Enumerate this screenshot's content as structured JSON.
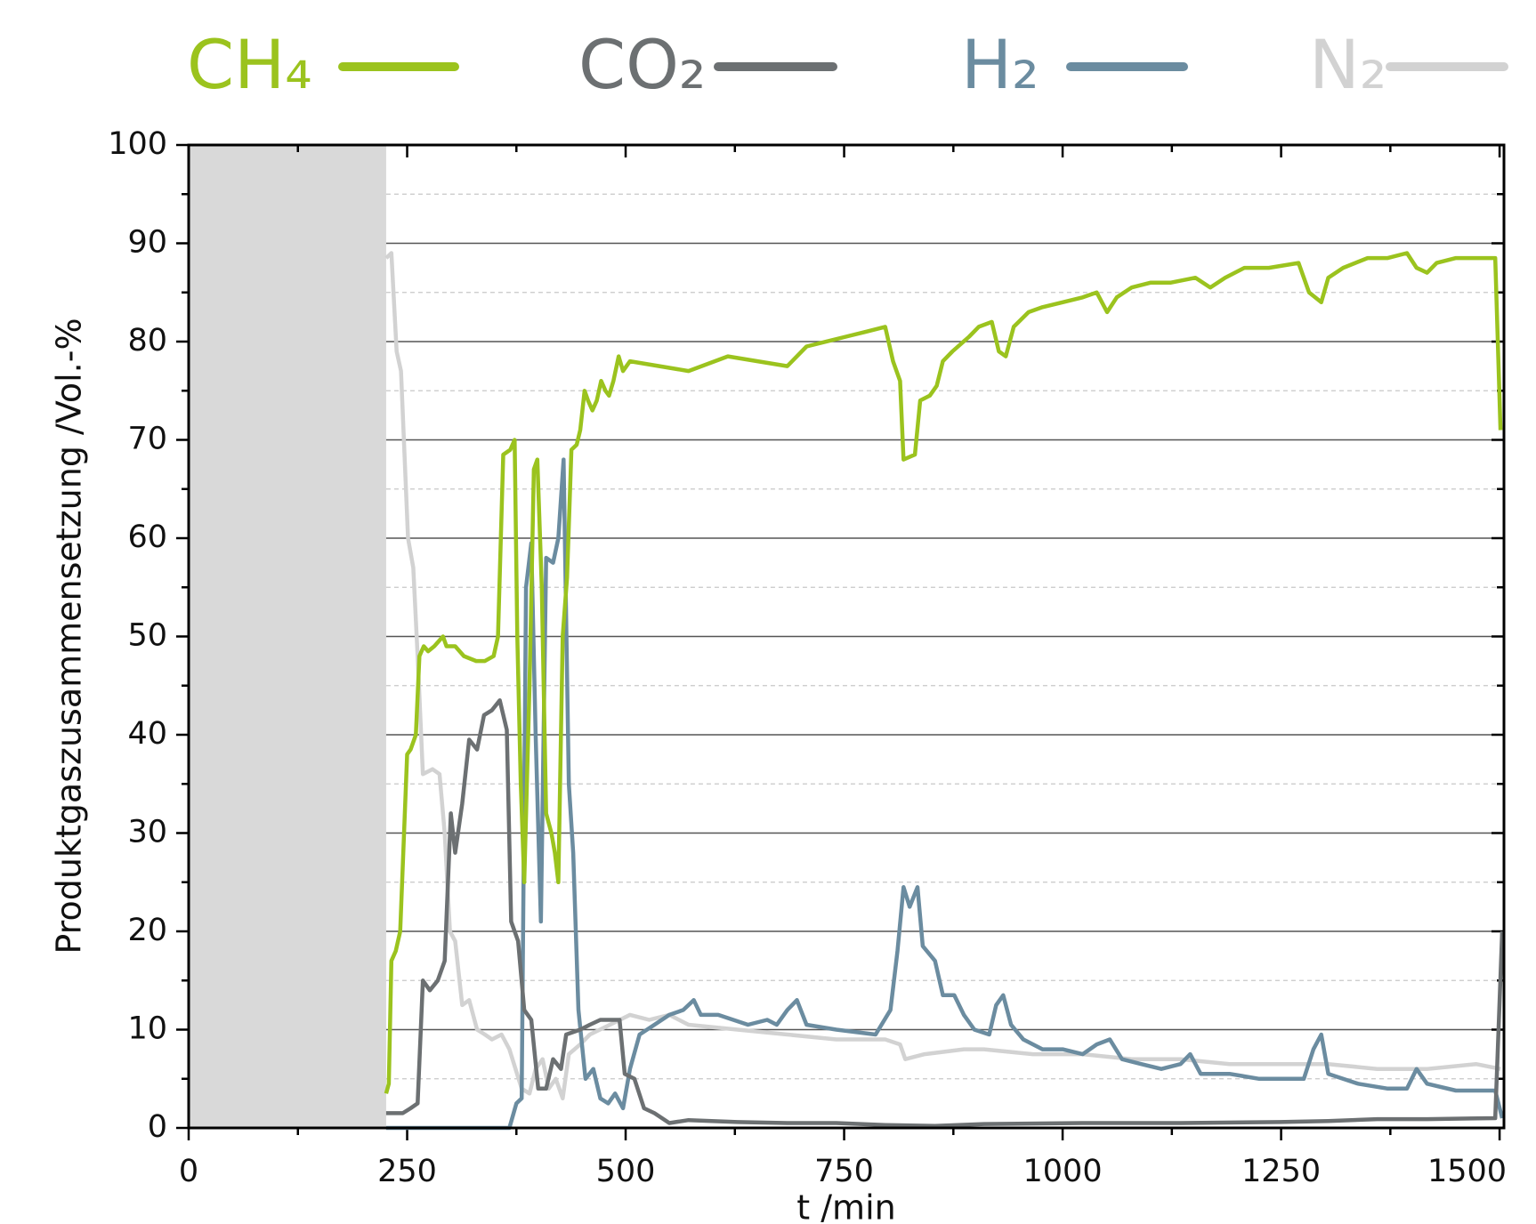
{
  "chart_data": {
    "type": "line",
    "ylabel": "Produktgaszusammensetzung /Vol.-%",
    "xlabel": "t /min",
    "xlim": [
      0,
      1505
    ],
    "ylim": [
      0,
      100
    ],
    "xticks": [
      0,
      250,
      500,
      750,
      1000,
      1250,
      1500
    ],
    "x_minor_ticks": [
      125,
      375,
      625,
      875,
      1125,
      1375
    ],
    "yticks": [
      0,
      10,
      20,
      30,
      40,
      50,
      60,
      70,
      80,
      90,
      100
    ],
    "y_minor_ticks": [
      5,
      15,
      25,
      35,
      45,
      55,
      65,
      75,
      85,
      95
    ],
    "grid": true,
    "shaded_xlim": [
      0,
      226
    ],
    "legend": "top",
    "series": [
      {
        "name": "CH₄",
        "color": "#9bc31e",
        "x": [
          226,
          229,
          232,
          237,
          242,
          250,
          254,
          260,
          264,
          269,
          274,
          281,
          291,
          295,
          305,
          315,
          329,
          339,
          349,
          354,
          360,
          368,
          373,
          376,
          380,
          384,
          390,
          395,
          399,
          404,
          409,
          415,
          419,
          423,
          428,
          433,
          438,
          444,
          448,
          453,
          457,
          462,
          467,
          472,
          477,
          481,
          486,
          492,
          497,
          505,
          572,
          617,
          685,
          707,
          752,
          775,
          797,
          806,
          814,
          818,
          831,
          837,
          848,
          856,
          863,
          874,
          893,
          904,
          919,
          927,
          935,
          944,
          961,
          977,
          1000,
          1023,
          1039,
          1051,
          1062,
          1079,
          1101,
          1124,
          1152,
          1169,
          1186,
          1208,
          1236,
          1270,
          1282,
          1296,
          1304,
          1321,
          1349,
          1372,
          1394,
          1405,
          1417,
          1428,
          1450,
          1473,
          1495,
          1501
        ],
        "values": [
          3.5,
          4.5,
          17,
          18,
          20,
          38,
          38.5,
          40,
          48,
          49,
          48.5,
          49,
          50,
          49,
          49,
          48,
          47.5,
          47.5,
          48,
          50,
          68.5,
          69,
          70,
          50,
          35,
          25,
          45,
          67,
          68,
          55,
          32,
          30,
          28,
          25,
          50,
          56,
          69,
          69.5,
          71,
          75,
          74,
          73,
          74,
          76,
          75,
          74.5,
          76,
          78.5,
          77,
          78,
          77,
          78.5,
          77.5,
          79.5,
          80.5,
          81,
          81.5,
          78,
          76,
          68,
          68.5,
          74,
          74.5,
          75.5,
          78,
          79,
          80.5,
          81.5,
          82,
          79,
          78.5,
          81.5,
          83,
          83.5,
          84,
          84.5,
          85,
          83,
          84.5,
          85.5,
          86,
          86,
          86.5,
          85.5,
          86.5,
          87.5,
          87.5,
          88,
          85,
          84,
          86.5,
          87.5,
          88.5,
          88.5,
          89,
          87.5,
          87,
          88,
          88.5,
          88.5,
          88.5,
          71
        ]
      },
      {
        "name": "CO₂",
        "color": "#6c7072",
        "x": [
          226,
          245,
          254,
          262,
          268,
          276,
          285,
          293,
          300,
          305,
          313,
          321,
          330,
          338,
          347,
          356,
          364,
          369,
          377,
          384,
          392,
          400,
          409,
          417,
          426,
          432,
          448,
          459,
          471,
          493,
          499,
          510,
          521,
          533,
          550,
          572,
          628,
          685,
          741,
          797,
          854,
          910,
          1023,
          1135,
          1248,
          1304,
          1360,
          1417,
          1495,
          1503
        ],
        "values": [
          1.5,
          1.5,
          2,
          2.5,
          15,
          14,
          15,
          17,
          32,
          28,
          33,
          39.5,
          38.5,
          42,
          42.5,
          43.5,
          40.5,
          21,
          19,
          12,
          11,
          4,
          4,
          7,
          6,
          9.5,
          10,
          10.5,
          11,
          11,
          5.5,
          5,
          2,
          1.5,
          0.5,
          0.8,
          0.6,
          0.5,
          0.5,
          0.3,
          0.2,
          0.4,
          0.5,
          0.5,
          0.6,
          0.7,
          0.9,
          0.9,
          1,
          20
        ]
      },
      {
        "name": "H₂",
        "color": "#6b8ca0",
        "x": [
          226,
          367,
          375,
          381,
          386,
          392,
          397,
          403,
          409,
          417,
          423,
          429,
          435,
          440,
          446,
          454,
          463,
          471,
          480,
          488,
          497,
          505,
          516,
          533,
          550,
          566,
          578,
          586,
          606,
          640,
          662,
          673,
          685,
          696,
          707,
          741,
          786,
          803,
          811,
          818,
          825,
          834,
          840,
          854,
          863,
          876,
          887,
          899,
          916,
          924,
          932,
          941,
          955,
          977,
          1000,
          1023,
          1039,
          1054,
          1068,
          1090,
          1113,
          1135,
          1146,
          1158,
          1191,
          1225,
          1259,
          1276,
          1287,
          1296,
          1304,
          1338,
          1372,
          1394,
          1405,
          1417,
          1450,
          1495,
          1503
        ],
        "values": [
          0,
          0,
          2.5,
          3,
          55,
          59.5,
          40,
          21,
          58,
          57.5,
          60,
          68,
          35,
          28,
          12,
          5,
          6,
          3,
          2.5,
          3.5,
          2,
          6,
          9.5,
          10.5,
          11.5,
          12,
          13,
          11.5,
          11.5,
          10.5,
          11,
          10.5,
          12,
          13,
          10.5,
          10,
          9.5,
          12,
          18,
          24.5,
          22.5,
          24.5,
          18.5,
          17,
          13.5,
          13.5,
          11.5,
          10,
          9.5,
          12.5,
          13.5,
          10.5,
          9,
          8,
          8,
          7.5,
          8.5,
          9,
          7,
          6.5,
          6,
          6.5,
          7.5,
          5.5,
          5.5,
          5,
          5,
          5,
          8,
          9.5,
          5.5,
          4.5,
          4,
          4,
          6,
          4.5,
          3.8,
          3.8,
          1
        ]
      },
      {
        "name": "N₂",
        "color": "#d2d2d2",
        "x": [
          226,
          232,
          238,
          243,
          251,
          257,
          262,
          268,
          279,
          287,
          293,
          299,
          305,
          313,
          321,
          330,
          339,
          347,
          358,
          367,
          381,
          390,
          397,
          405,
          412,
          420,
          428,
          435,
          448,
          459,
          482,
          505,
          527,
          550,
          572,
          628,
          685,
          741,
          797,
          814,
          820,
          842,
          887,
          910,
          966,
          1023,
          1079,
          1135,
          1191,
          1248,
          1304,
          1360,
          1417,
          1473,
          1501
        ],
        "values": [
          88.5,
          89,
          79,
          77,
          60,
          57,
          48,
          36,
          36.5,
          36,
          30,
          20,
          19,
          12.5,
          13,
          10,
          9.5,
          9,
          9.5,
          8,
          4,
          3.5,
          6,
          7,
          4,
          5,
          3,
          7.5,
          8.5,
          9.5,
          10.5,
          11.5,
          11,
          11.5,
          10.5,
          10,
          9.5,
          9,
          9,
          8.5,
          7,
          7.5,
          8,
          8,
          7.5,
          7.5,
          7,
          7,
          6.5,
          6.5,
          6.5,
          6,
          6,
          6.5,
          6
        ]
      }
    ]
  }
}
